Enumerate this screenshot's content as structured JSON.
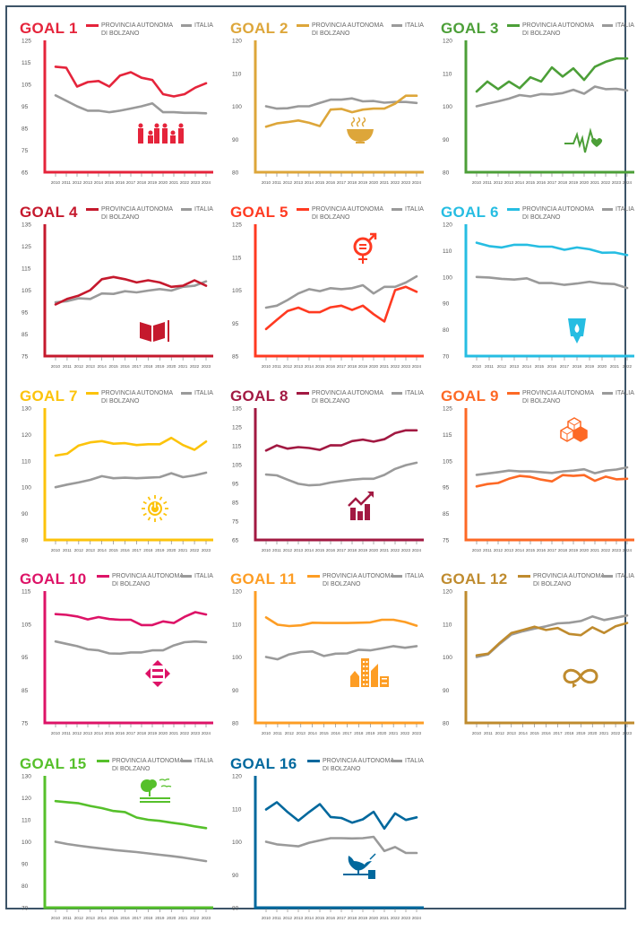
{
  "legend": {
    "province_line1": "PROVINCIA AUTONOMA",
    "province_line2": "DI BOLZANO",
    "italy": "ITALIA"
  },
  "colors": {
    "frame": "#3d5468",
    "italy_line": "#9a9a9a"
  },
  "chart_data": [
    {
      "type": "line",
      "title": "GOAL 1",
      "color": "#e5243b",
      "icon": "family-icon",
      "x": [
        "2010",
        "2011",
        "2012",
        "2013",
        "2014",
        "2015",
        "2016",
        "2017",
        "2018",
        "2019",
        "2020",
        "2021",
        "2022",
        "2023",
        "2024"
      ],
      "ylim": [
        65,
        125
      ],
      "yticks": [
        "65",
        "75",
        "85",
        "95",
        "105",
        "115",
        "125"
      ],
      "series": [
        {
          "name": "PROVINCIA AUTONOMA DI BOLZANO",
          "values": [
            113,
            112.5,
            104,
            106,
            106.5,
            104,
            109,
            110.5,
            108,
            107,
            100.5,
            99.5,
            100.5,
            103.5,
            105.5
          ]
        },
        {
          "name": "ITALIA",
          "values": [
            100,
            97.5,
            95,
            93,
            93,
            92.3,
            93,
            94,
            95,
            96.3,
            92.3,
            92.3,
            92,
            92,
            91.8
          ]
        }
      ]
    },
    {
      "type": "line",
      "title": "GOAL 2",
      "color": "#dda63a",
      "icon": "food-bowl-icon",
      "x": [
        "2010",
        "2011",
        "2012",
        "2013",
        "2014",
        "2015",
        "2016",
        "2017",
        "2018",
        "2019",
        "2020",
        "2021",
        "2022",
        "2023",
        "2024"
      ],
      "ylim": [
        80,
        120
      ],
      "yticks": [
        "80",
        "90",
        "100",
        "110",
        "120"
      ],
      "series": [
        {
          "name": "PROVINCIA AUTONOMA DI BOLZANO",
          "values": [
            93.8,
            94.8,
            95.2,
            95.7,
            95,
            94,
            99,
            99.2,
            98.2,
            99,
            99.3,
            99.3,
            100.8,
            103.2,
            103.2
          ]
        },
        {
          "name": "ITALIA",
          "values": [
            100,
            99.3,
            99.4,
            100,
            100,
            101,
            102,
            102,
            102.4,
            101.5,
            101.6,
            101.1,
            101.3,
            101.3,
            101
          ]
        }
      ]
    },
    {
      "type": "line",
      "title": "GOAL 3",
      "color": "#4c9f38",
      "icon": "heartbeat-icon",
      "x": [
        "2010",
        "2011",
        "2012",
        "2013",
        "2014",
        "2015",
        "2016",
        "2017",
        "2018",
        "2019",
        "2020",
        "2021",
        "2022",
        "2023",
        "2024"
      ],
      "ylim": [
        80,
        120
      ],
      "yticks": [
        "80",
        "90",
        "100",
        "110",
        "120"
      ],
      "series": [
        {
          "name": "PROVINCIA AUTONOMA DI BOLZANO",
          "values": [
            104.5,
            107.5,
            105.2,
            107.5,
            105.5,
            108.8,
            107.5,
            111.8,
            109,
            111.5,
            108,
            112,
            113.5,
            114.5,
            114.5
          ]
        },
        {
          "name": "ITALIA",
          "values": [
            100,
            100.8,
            101.5,
            102.3,
            103.4,
            103,
            103.7,
            103.6,
            104,
            105,
            103.8,
            106,
            105.2,
            105.3,
            104.8
          ]
        }
      ]
    },
    {
      "type": "line",
      "title": "GOAL 4",
      "color": "#c5192d",
      "icon": "book-icon",
      "x": [
        "2010",
        "2011",
        "2012",
        "2013",
        "2014",
        "2015",
        "2016",
        "2017",
        "2018",
        "2019",
        "2020",
        "2021",
        "2022",
        "2023"
      ],
      "ylim": [
        75,
        135
      ],
      "yticks": [
        "75",
        "85",
        "95",
        "105",
        "115",
        "125",
        "135"
      ],
      "series": [
        {
          "name": "PROVINCIA AUTONOMA DI BOLZANO",
          "values": [
            98.5,
            101,
            102.5,
            105,
            110,
            111,
            110,
            108.5,
            109.5,
            108.5,
            106.5,
            107,
            109.5,
            107
          ]
        },
        {
          "name": "ITALIA",
          "values": [
            99.5,
            100,
            101.3,
            101,
            103.5,
            103.3,
            104.5,
            104,
            104.8,
            105.5,
            104.8,
            106.5,
            107,
            109
          ]
        }
      ]
    },
    {
      "type": "line",
      "title": "GOAL 5",
      "color": "#ff3a21",
      "icon": "gender-equality-icon",
      "x": [
        "2010",
        "2011",
        "2012",
        "2013",
        "2014",
        "2015",
        "2016",
        "2017",
        "2018",
        "2019",
        "2020",
        "2021",
        "2022",
        "2023",
        "2024"
      ],
      "ylim": [
        85,
        125
      ],
      "yticks": [
        "85",
        "95",
        "105",
        "115",
        "125"
      ],
      "series": [
        {
          "name": "PROVINCIA AUTONOMA DI BOLZANO",
          "values": [
            93.2,
            96,
            98.7,
            99.7,
            98.3,
            98.3,
            99.8,
            100.3,
            99,
            100.3,
            97.7,
            95.5,
            105,
            106,
            104.5
          ]
        },
        {
          "name": "ITALIA",
          "values": [
            99.7,
            100.3,
            102,
            104,
            105.3,
            104.7,
            105.6,
            105.3,
            105.6,
            106.5,
            104,
            106,
            106,
            107.3,
            109.2
          ]
        }
      ]
    },
    {
      "type": "line",
      "title": "GOAL 6",
      "color": "#26bde2",
      "icon": "water-drop-glass-icon",
      "x": [
        "2010",
        "2011",
        "2012",
        "2013",
        "2014",
        "2015",
        "2016",
        "2017",
        "2018",
        "2019",
        "2020",
        "2021",
        "2022"
      ],
      "ylim": [
        70,
        120
      ],
      "yticks": [
        "70",
        "80",
        "90",
        "100",
        "110",
        "120"
      ],
      "series": [
        {
          "name": "PROVINCIA AUTONOMA DI BOLZANO",
          "values": [
            113,
            111.7,
            111.2,
            112.2,
            112.2,
            111.5,
            111.5,
            110.3,
            111.2,
            110.5,
            109.2,
            109.3,
            108.3
          ]
        },
        {
          "name": "ITALIA",
          "values": [
            100,
            99.8,
            99.3,
            99,
            99.5,
            97.7,
            97.7,
            97,
            97.5,
            98.2,
            97.5,
            97.3,
            95.8
          ]
        }
      ]
    },
    {
      "type": "line",
      "title": "GOAL 7",
      "color": "#fcc30b",
      "icon": "sun-power-icon",
      "x": [
        "2010",
        "2011",
        "2012",
        "2013",
        "2014",
        "2015",
        "2016",
        "2017",
        "2018",
        "2019",
        "2020",
        "2021",
        "2022",
        "2023"
      ],
      "ylim": [
        80,
        130
      ],
      "yticks": [
        "80",
        "90",
        "100",
        "110",
        "120",
        "130"
      ],
      "series": [
        {
          "name": "PROVINCIA AUTONOMA DI BOLZANO",
          "values": [
            112,
            112.7,
            115.8,
            117,
            117.5,
            116.5,
            116.7,
            116,
            116.3,
            116.3,
            118.7,
            116,
            114.2,
            117.3
          ]
        },
        {
          "name": "ITALIA",
          "values": [
            100,
            101,
            101.8,
            102.8,
            104.2,
            103.4,
            103.6,
            103.4,
            103.6,
            103.8,
            105.3,
            103.8,
            104.5,
            105.5
          ]
        }
      ]
    },
    {
      "type": "line",
      "title": "GOAL 8",
      "color": "#a21942",
      "icon": "growth-chart-icon",
      "x": [
        "2010",
        "2011",
        "2012",
        "2013",
        "2014",
        "2015",
        "2016",
        "2017",
        "2018",
        "2019",
        "2020",
        "2021",
        "2022",
        "2023",
        "2024"
      ],
      "ylim": [
        65,
        135
      ],
      "yticks": [
        "65",
        "75",
        "85",
        "95",
        "105",
        "115",
        "125",
        "135"
      ],
      "series": [
        {
          "name": "PROVINCIA AUTONOMA DI BOLZANO",
          "values": [
            112.5,
            115.2,
            113.5,
            114.3,
            113.8,
            112.8,
            115.3,
            115.2,
            117.5,
            118.3,
            117.2,
            118.5,
            121.7,
            123.2,
            123.2
          ]
        },
        {
          "name": "ITALIA",
          "values": [
            99.7,
            99.3,
            97,
            94.8,
            94,
            94.3,
            95.5,
            96.3,
            97,
            97.5,
            97.5,
            99.5,
            102.7,
            104.7,
            106
          ]
        }
      ]
    },
    {
      "type": "line",
      "title": "GOAL 9",
      "color": "#fd6925",
      "icon": "cubes-icon",
      "x": [
        "2010",
        "2011",
        "2012",
        "2013",
        "2014",
        "2015",
        "2016",
        "2017",
        "2018",
        "2019",
        "2020",
        "2021",
        "2022",
        "2023",
        "2024"
      ],
      "ylim": [
        75,
        125
      ],
      "yticks": [
        "75",
        "85",
        "95",
        "105",
        "115",
        "125"
      ],
      "series": [
        {
          "name": "PROVINCIA AUTONOMA DI BOLZANO",
          "values": [
            95.3,
            96.2,
            96.6,
            98.2,
            99.3,
            98.9,
            97.9,
            97.2,
            99.6,
            99.3,
            99.6,
            97.4,
            99,
            98,
            98.2
          ]
        },
        {
          "name": "ITALIA",
          "values": [
            99.7,
            100.2,
            100.7,
            101.3,
            101,
            101,
            100.7,
            100.4,
            101,
            101.3,
            101.8,
            100.3,
            101.3,
            101.7,
            102.5
          ]
        }
      ]
    },
    {
      "type": "line",
      "title": "GOAL 10",
      "color": "#dd1367",
      "icon": "reduced-inequality-icon",
      "x": [
        "2010",
        "2011",
        "2012",
        "2013",
        "2014",
        "2015",
        "2016",
        "2017",
        "2018",
        "2019",
        "2020",
        "2021",
        "2022",
        "2023",
        "2024"
      ],
      "ylim": [
        75,
        115
      ],
      "yticks": [
        "75",
        "85",
        "95",
        "105",
        "115"
      ],
      "series": [
        {
          "name": "PROVINCIA AUTONOMA DI BOLZANO",
          "values": [
            108,
            107.8,
            107.3,
            106.4,
            107.1,
            106.5,
            106.3,
            106.3,
            104.7,
            104.7,
            105.8,
            105.3,
            107.2,
            108.6,
            107.9
          ]
        },
        {
          "name": "ITALIA",
          "values": [
            99.7,
            99,
            98.3,
            97.3,
            97,
            96.1,
            96,
            96.4,
            96.4,
            97,
            97,
            98.5,
            99.5,
            99.7,
            99.5
          ]
        }
      ]
    },
    {
      "type": "line",
      "title": "GOAL 11",
      "color": "#fd9d24",
      "icon": "city-buildings-icon",
      "x": [
        "2010",
        "2011",
        "2012",
        "2013",
        "2014",
        "2015",
        "2016",
        "2017",
        "2018",
        "2019",
        "2020",
        "2021",
        "2022",
        "2023"
      ],
      "ylim": [
        80,
        120
      ],
      "yticks": [
        "80",
        "90",
        "100",
        "110",
        "120"
      ],
      "series": [
        {
          "name": "PROVINCIA AUTONOMA DI BOLZANO",
          "values": [
            112,
            109.8,
            109.4,
            109.6,
            110.4,
            110.3,
            110.3,
            110.3,
            110.4,
            110.5,
            111.3,
            111.3,
            110.6,
            109.5
          ]
        },
        {
          "name": "ITALIA",
          "values": [
            100,
            99.3,
            100.8,
            101.5,
            101.7,
            100.3,
            101,
            101.1,
            102.2,
            102,
            102.6,
            103.3,
            102.8,
            103.3
          ]
        }
      ]
    },
    {
      "type": "line",
      "title": "GOAL 12",
      "color": "#bf8b2e",
      "icon": "infinity-loop-icon",
      "x": [
        "2010",
        "2011",
        "2012",
        "2013",
        "2014",
        "2015",
        "2016",
        "2017",
        "2018",
        "2019",
        "2020",
        "2021",
        "2022",
        "2023"
      ],
      "ylim": [
        80,
        120
      ],
      "yticks": [
        "80",
        "90",
        "100",
        "110",
        "120"
      ],
      "series": [
        {
          "name": "PROVINCIA AUTONOMA DI BOLZANO",
          "values": [
            100.5,
            101,
            104.3,
            107.3,
            108.2,
            109.2,
            108.2,
            108.8,
            107,
            106.6,
            109,
            107.3,
            109.3,
            110.3
          ]
        },
        {
          "name": "ITALIA",
          "values": [
            100,
            100.8,
            104,
            106.8,
            107.8,
            108.6,
            109.3,
            110.2,
            110.4,
            110.9,
            112.3,
            111.2,
            111.9,
            112.6
          ]
        }
      ]
    },
    {
      "type": "line",
      "title": "GOAL 15",
      "color": "#56c02b",
      "icon": "tree-birds-icon",
      "x": [
        "2010",
        "2011",
        "2012",
        "2013",
        "2014",
        "2015",
        "2016",
        "2017",
        "2018",
        "2019",
        "2020",
        "2021",
        "2022",
        "2023"
      ],
      "ylim": [
        70,
        130
      ],
      "yticks": [
        "70",
        "80",
        "90",
        "100",
        "110",
        "120",
        "130"
      ],
      "series": [
        {
          "name": "PROVINCIA AUTONOMA DI BOLZANO",
          "values": [
            118.5,
            118,
            117.5,
            116.3,
            115.3,
            114,
            113.5,
            111,
            110,
            109.5,
            108.7,
            108,
            107,
            106.2
          ]
        },
        {
          "name": "ITALIA",
          "values": [
            100,
            99,
            98.2,
            97.5,
            96.9,
            96.3,
            95.8,
            95.3,
            94.7,
            94.1,
            93.5,
            92.8,
            92,
            91.2
          ]
        }
      ]
    },
    {
      "type": "line",
      "title": "GOAL 16",
      "color": "#00689d",
      "icon": "dove-gavel-icon",
      "x": [
        "2010",
        "2011",
        "2012",
        "2013",
        "2014",
        "2015",
        "2016",
        "2017",
        "2018",
        "2019",
        "2020",
        "2021",
        "2022",
        "2023",
        "2024"
      ],
      "ylim": [
        80,
        120
      ],
      "yticks": [
        "80",
        "90",
        "100",
        "110",
        "120"
      ],
      "series": [
        {
          "name": "PROVINCIA AUTONOMA DI BOLZANO",
          "values": [
            109.8,
            112,
            109,
            106.4,
            109,
            111.4,
            107.5,
            107.2,
            105.8,
            106.8,
            109.1,
            104,
            108.6,
            106.6,
            107.4
          ]
        },
        {
          "name": "ITALIA",
          "values": [
            100,
            99.2,
            98.9,
            98.6,
            99.7,
            100.4,
            101.1,
            101.1,
            101,
            101.1,
            101.5,
            97.2,
            98.4,
            96.6,
            96.6
          ]
        }
      ]
    }
  ]
}
